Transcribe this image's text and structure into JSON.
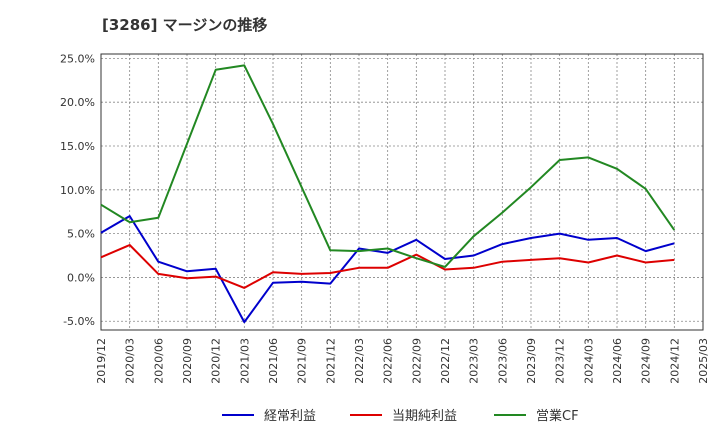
{
  "chart_data": {
    "type": "line",
    "title": "[3286]  マージンの推移",
    "xlabel": "",
    "ylabel": "",
    "x": [
      "2019/12",
      "2020/03",
      "2020/06",
      "2020/09",
      "2020/12",
      "2021/03",
      "2021/06",
      "2021/09",
      "2021/12",
      "2022/03",
      "2022/06",
      "2022/09",
      "2022/12",
      "2023/03",
      "2023/06",
      "2023/09",
      "2023/12",
      "2024/03",
      "2024/06",
      "2024/09",
      "2024/12"
    ],
    "x_ticks": [
      "2019/12",
      "2020/03",
      "2020/06",
      "2020/09",
      "2020/12",
      "2021/03",
      "2021/06",
      "2021/09",
      "2021/12",
      "2022/03",
      "2022/06",
      "2022/09",
      "2022/12",
      "2023/03",
      "2023/06",
      "2023/09",
      "2023/12",
      "2024/03",
      "2024/06",
      "2024/09",
      "2024/12",
      "2025/03"
    ],
    "y_ticks": [
      "25.0%",
      "20.0%",
      "15.0%",
      "10.0%",
      "5.0%",
      "0.0%",
      "-5.0%"
    ],
    "y_tick_values": [
      25,
      20,
      15,
      10,
      5,
      0,
      -5
    ],
    "ylim": [
      -6,
      25.5
    ],
    "grid": true,
    "legend": "bottom",
    "series": [
      {
        "name": "経常利益",
        "color": "#0000cc",
        "values": [
          5.1,
          7.0,
          1.8,
          0.7,
          1.0,
          -5.1,
          -0.6,
          -0.5,
          -0.7,
          3.3,
          2.8,
          4.3,
          2.1,
          2.5,
          3.8,
          4.5,
          5.0,
          4.3,
          4.5,
          3.0,
          3.9
        ]
      },
      {
        "name": "当期純利益",
        "color": "#dd0000",
        "values": [
          2.3,
          3.7,
          0.4,
          -0.1,
          0.1,
          -1.2,
          0.6,
          0.4,
          0.5,
          1.1,
          1.1,
          2.6,
          0.9,
          1.1,
          1.8,
          2.0,
          2.2,
          1.7,
          2.5,
          1.7,
          2.0
        ]
      },
      {
        "name": "営業CF",
        "color": "#228822",
        "values": [
          8.3,
          6.3,
          6.8,
          null,
          23.7,
          24.2,
          17.5,
          null,
          3.1,
          3.0,
          3.3,
          2.2,
          1.2,
          4.7,
          7.4,
          10.3,
          13.4,
          13.7,
          12.4,
          10.1,
          5.4
        ]
      }
    ]
  }
}
